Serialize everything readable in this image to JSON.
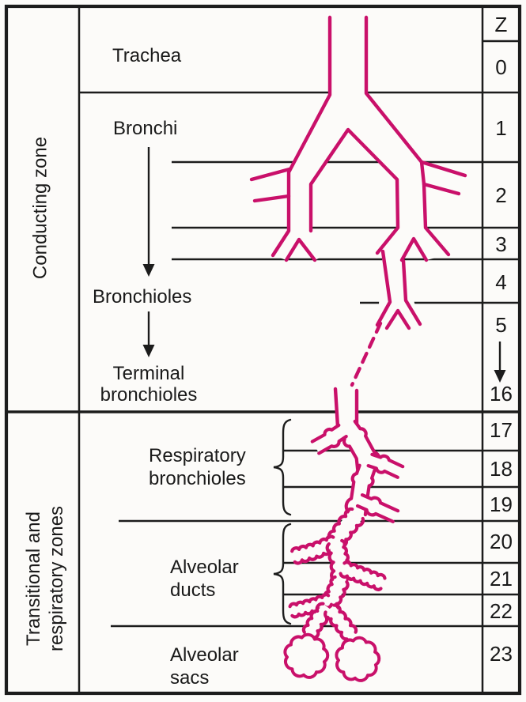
{
  "left_column": {
    "conducting_zone_label": "Conducting zone",
    "transitional_zone_line1": "Transitional and",
    "transitional_zone_line2": "respiratory zones"
  },
  "airway_labels": {
    "trachea": "Trachea",
    "bronchi": "Bronchi",
    "bronchioles": "Bronchioles",
    "terminal_line1": "Terminal",
    "terminal_line2": "bronchioles",
    "respiratory_line1": "Respiratory",
    "respiratory_line2": "bronchioles",
    "alveolar_ducts_line1": "Alveolar",
    "alveolar_ducts_line2": "ducts",
    "alveolar_sacs_line1": "Alveolar",
    "alveolar_sacs_line2": "sacs"
  },
  "z_column": {
    "header": "Z",
    "cells": [
      "0",
      "1",
      "2",
      "3",
      "4",
      "5",
      "16",
      "17",
      "18",
      "19",
      "20",
      "21",
      "22",
      "23"
    ]
  },
  "colors": {
    "airway": "#c9106a",
    "line": "#1c1c1c",
    "text": "#1a1a1a",
    "background": "#fcfbf9"
  }
}
